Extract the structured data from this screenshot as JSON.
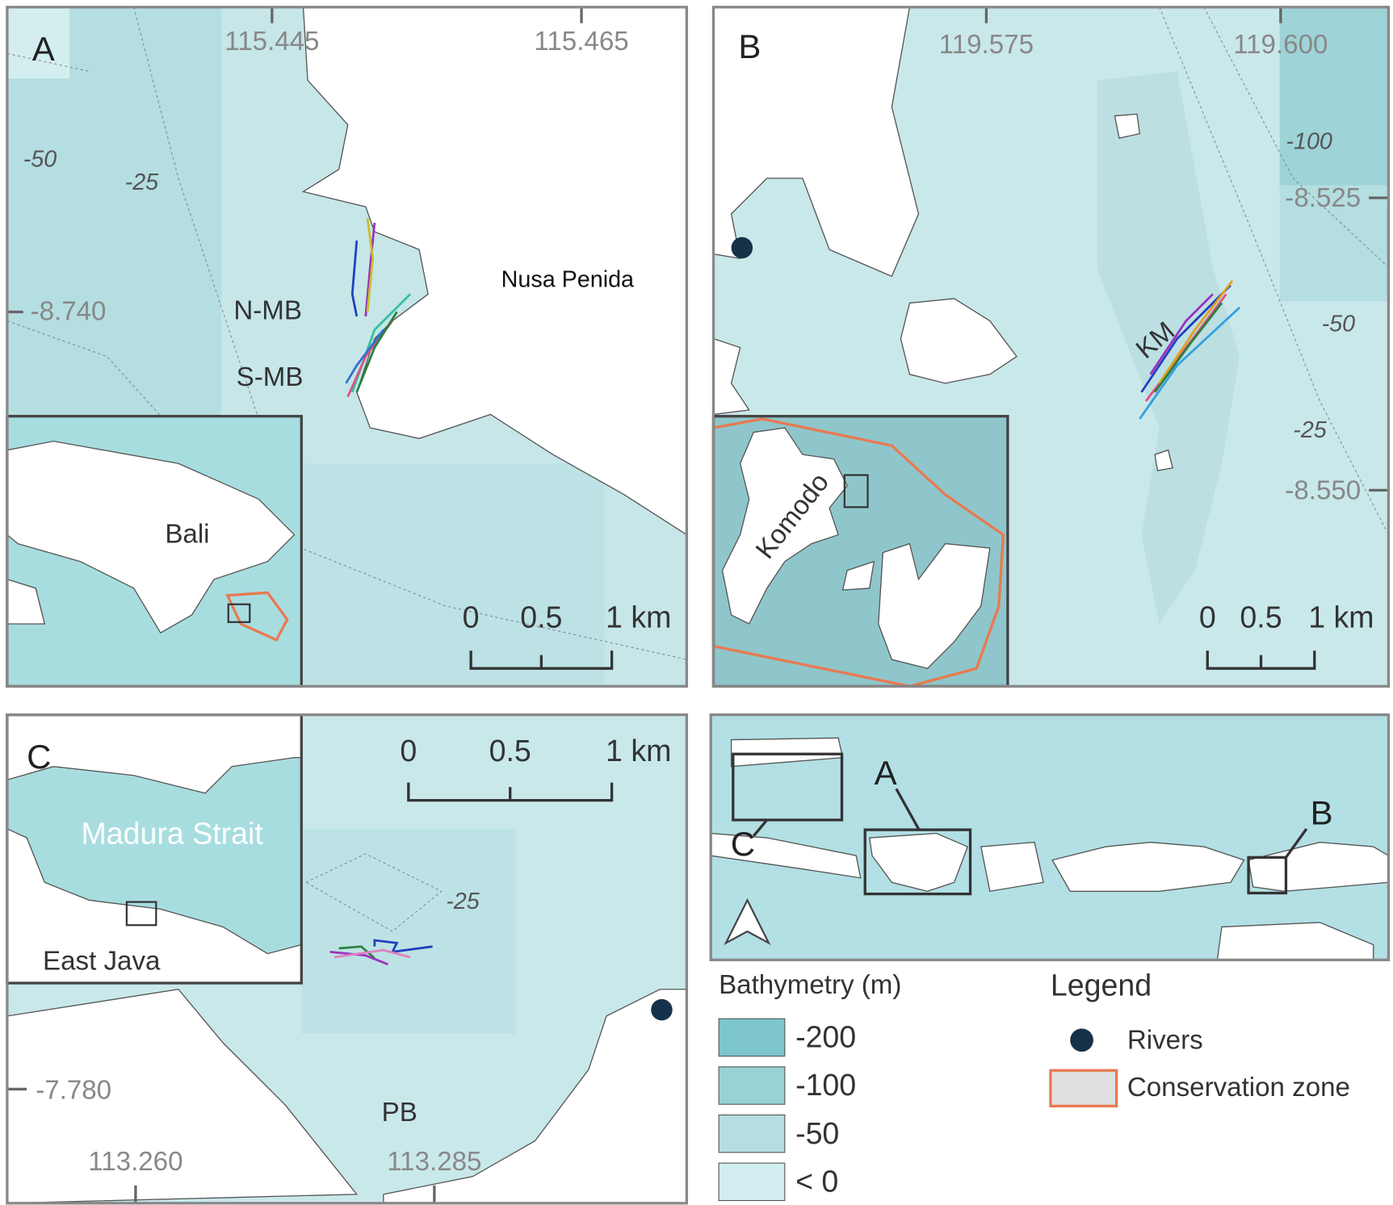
{
  "panels": [
    {
      "letter": "A",
      "x_ticks": [
        "115.445",
        "115.465"
      ],
      "y_ticks": [
        "-8.740"
      ],
      "contours": [
        "-50",
        "-25"
      ],
      "labels": [
        "Nusa Penida",
        "N-MB",
        "S-MB"
      ],
      "inset_labels": [
        "Bali"
      ],
      "scale": [
        "0",
        "0.5",
        "1 km"
      ]
    },
    {
      "letter": "B",
      "x_ticks": [
        "119.575",
        "119.600"
      ],
      "y_ticks": [
        "-8.525",
        "-8.550"
      ],
      "contours": [
        "-100",
        "-50",
        "-25"
      ],
      "labels": [
        "KM"
      ],
      "inset_labels": [
        "Komodo"
      ],
      "scale": [
        "0",
        "0.5",
        "1 km"
      ]
    },
    {
      "letter": "C",
      "x_ticks": [
        "113.260",
        "113.285"
      ],
      "y_ticks": [
        "-7.780"
      ],
      "contours": [
        "-25"
      ],
      "labels": [
        "PB"
      ],
      "inset_labels": [
        "Madura Strait",
        "East Java"
      ],
      "scale": [
        "0",
        "0.5",
        "1 km"
      ]
    }
  ],
  "overview": {
    "labels": [
      "A",
      "B",
      "C"
    ]
  },
  "bathymetry": {
    "title": "Bathymetry (m)",
    "classes": [
      "-200",
      "-100",
      "-50",
      "< 0"
    ]
  },
  "legend": {
    "title": "Legend",
    "items": [
      "Rivers",
      "Conservation zone"
    ]
  }
}
